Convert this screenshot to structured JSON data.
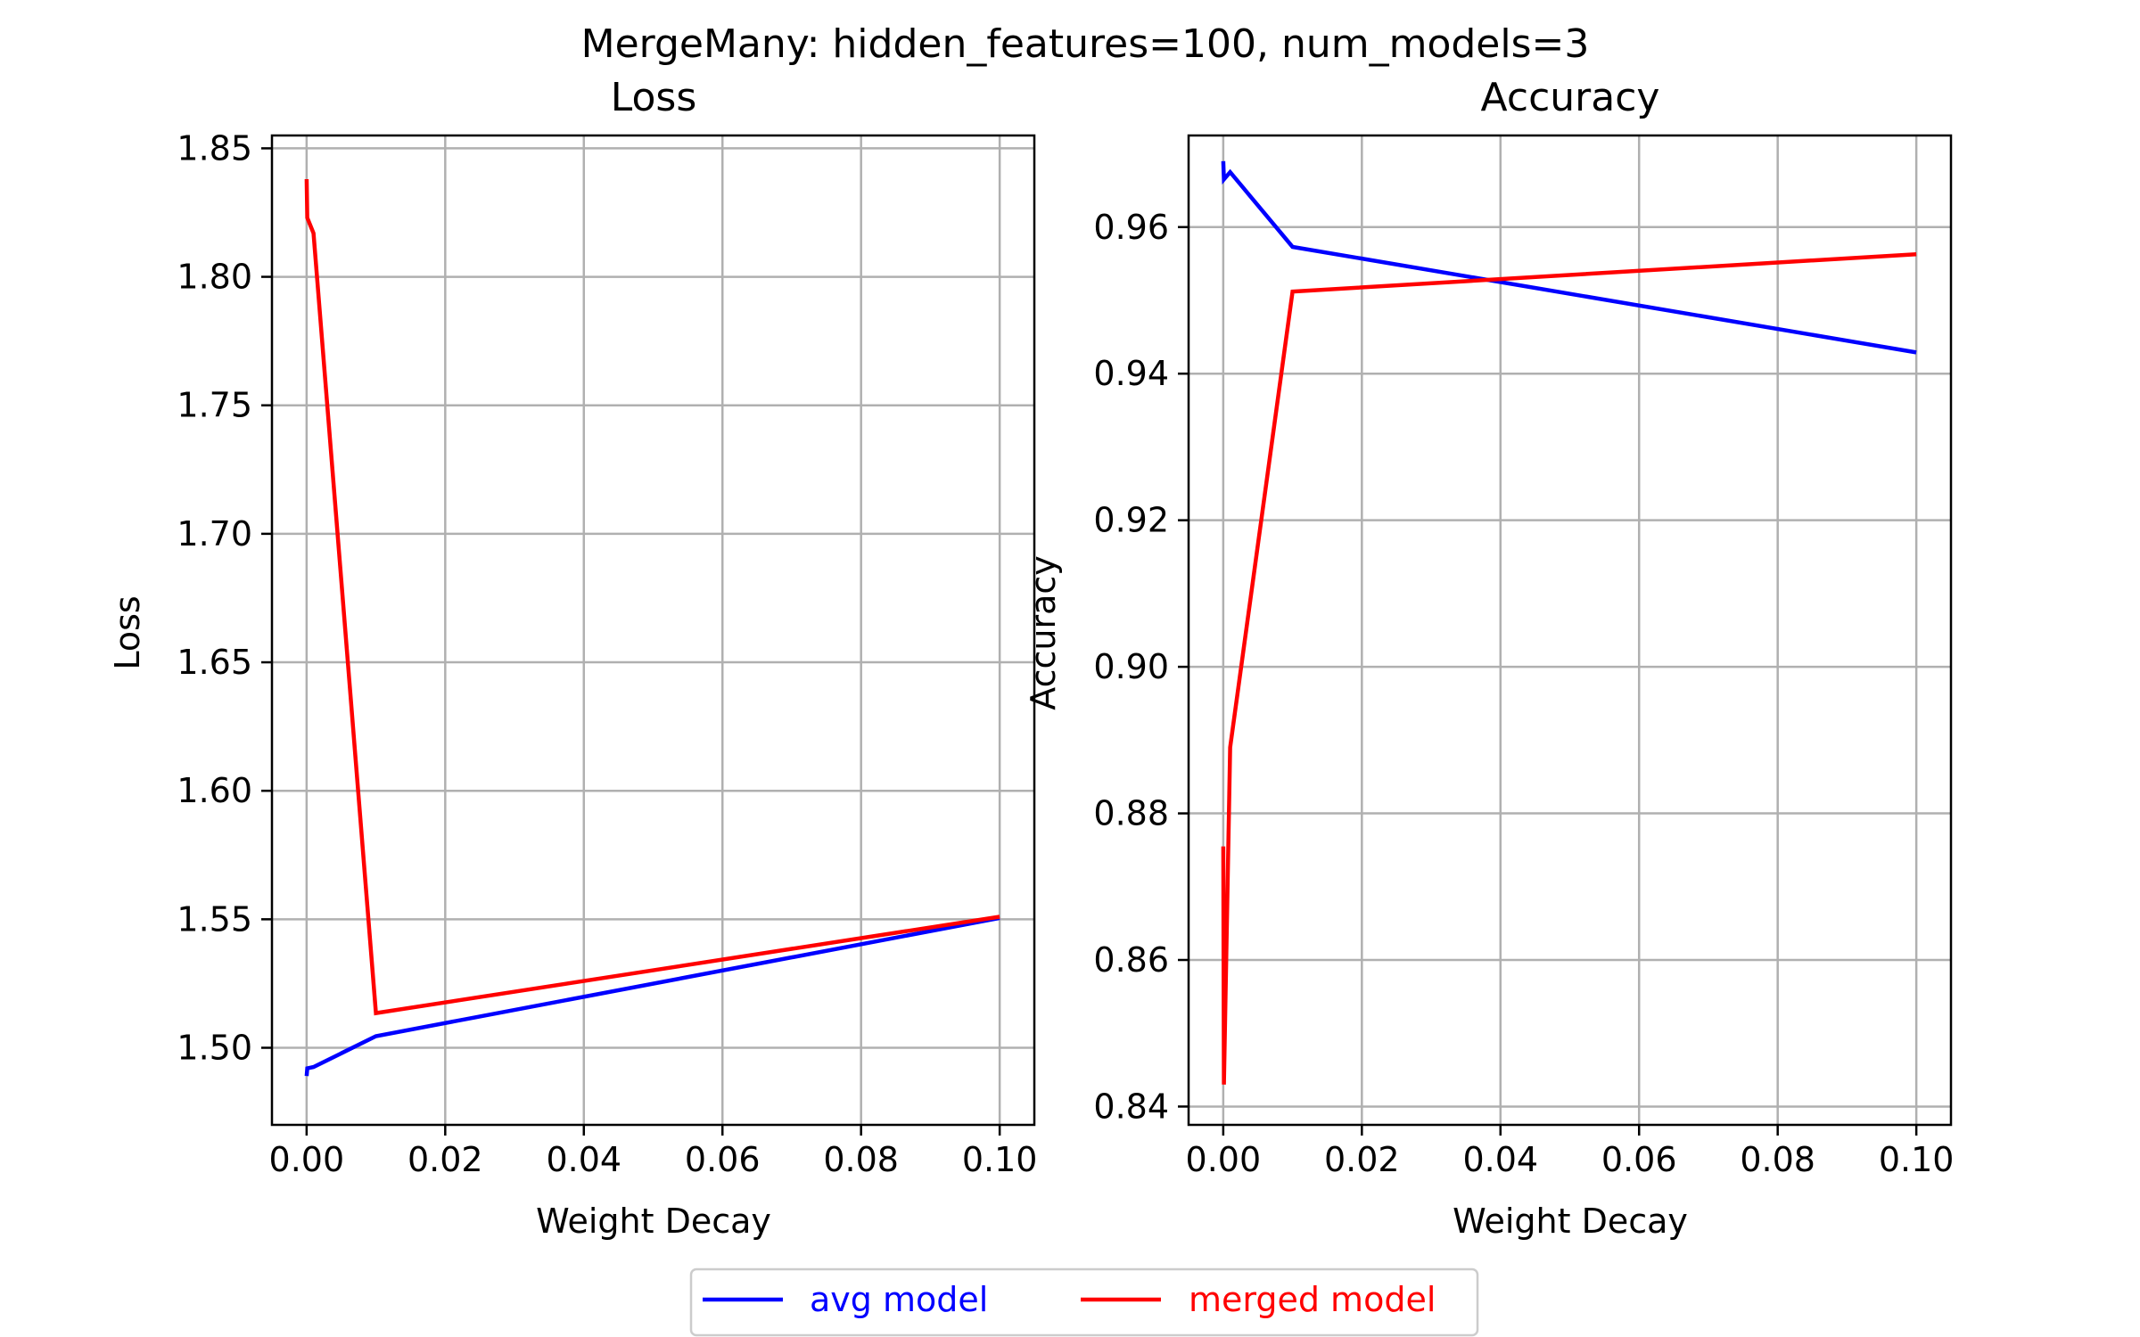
{
  "suptitle": "MergeMany: hidden_features=100, num_models=3",
  "colors": {
    "avg": "#0000ff",
    "merged": "#ff0000",
    "grid": "#b0b0b0"
  },
  "legend": {
    "placement": "bottom-center",
    "items": [
      {
        "label": "avg model",
        "color": "#0000ff"
      },
      {
        "label": "merged model",
        "color": "#ff0000"
      }
    ]
  },
  "chart_data": [
    {
      "type": "line",
      "title": "Loss",
      "xlabel": "Weight Decay",
      "ylabel": "Loss",
      "xlim": [
        -0.005,
        0.105
      ],
      "ylim": [
        1.47,
        1.855
      ],
      "xticks": [
        0.0,
        0.02,
        0.04,
        0.06,
        0.08,
        0.1
      ],
      "xtick_labels": [
        "0.00",
        "0.02",
        "0.04",
        "0.06",
        "0.08",
        "0.10"
      ],
      "yticks": [
        1.5,
        1.55,
        1.6,
        1.65,
        1.7,
        1.75,
        1.8,
        1.85
      ],
      "ytick_labels": [
        "1.50",
        "1.55",
        "1.60",
        "1.65",
        "1.70",
        "1.75",
        "1.80",
        "1.85"
      ],
      "grid": true,
      "series": [
        {
          "name": "avg model",
          "color": "#0000ff",
          "x": [
            0.0,
            0.0001,
            0.001,
            0.01,
            0.1
          ],
          "y": [
            1.489,
            1.492,
            1.4925,
            1.5045,
            1.5505
          ]
        },
        {
          "name": "merged model",
          "color": "#ff0000",
          "x": [
            0.0,
            0.0001,
            0.001,
            0.01,
            0.1
          ],
          "y": [
            1.838,
            1.823,
            1.817,
            1.5135,
            1.551
          ]
        }
      ]
    },
    {
      "type": "line",
      "title": "Accuracy",
      "xlabel": "Weight Decay",
      "ylabel": "Accuracy",
      "xlim": [
        -0.005,
        0.105
      ],
      "ylim": [
        0.8375,
        0.9725
      ],
      "xticks": [
        0.0,
        0.02,
        0.04,
        0.06,
        0.08,
        0.1
      ],
      "xtick_labels": [
        "0.00",
        "0.02",
        "0.04",
        "0.06",
        "0.08",
        "0.10"
      ],
      "yticks": [
        0.84,
        0.86,
        0.88,
        0.9,
        0.92,
        0.94,
        0.96
      ],
      "ytick_labels": [
        "0.84",
        "0.86",
        "0.88",
        "0.90",
        "0.92",
        "0.94",
        "0.96"
      ],
      "grid": true,
      "series": [
        {
          "name": "avg model",
          "color": "#0000ff",
          "x": [
            0.0,
            0.0001,
            0.001,
            0.01,
            0.1
          ],
          "y": [
            0.969,
            0.9665,
            0.9675,
            0.9573,
            0.9429
          ]
        },
        {
          "name": "merged model",
          "color": "#ff0000",
          "x": [
            0.0,
            0.0001,
            0.001,
            0.01,
            0.1
          ],
          "y": [
            0.8755,
            0.843,
            0.889,
            0.9512,
            0.9563
          ]
        }
      ]
    }
  ]
}
